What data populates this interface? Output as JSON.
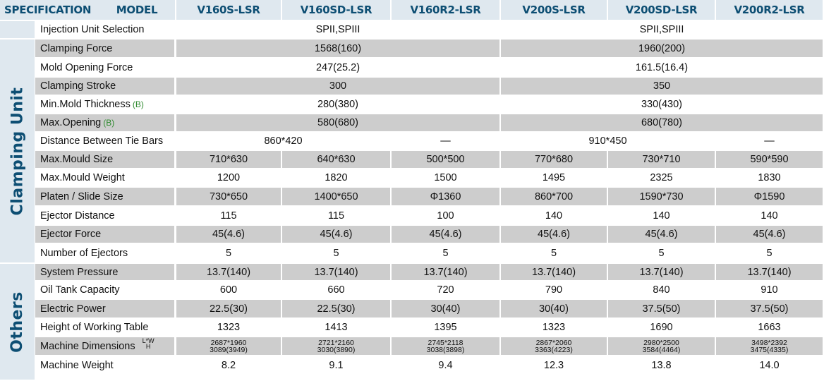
{
  "header": {
    "spec": "SPECIFICATION",
    "model": "MODEL",
    "models": [
      "V160S-LSR",
      "V160SD-LSR",
      "V160R2-LSR",
      "V200S-LSR",
      "V200SD-LSR",
      "V200R2-LSR"
    ]
  },
  "groups": {
    "clamping": "Clamping Unit",
    "others": "Others"
  },
  "badge": "(B)",
  "lwh": {
    "lw": "L*W",
    "h": "H"
  },
  "rows": [
    {
      "label": "Injection Unit Selection",
      "shaded": false,
      "span": "group",
      "values": [
        "SPII,SPIII",
        "SPII,SPIII"
      ]
    },
    {
      "label": "Clamping Force",
      "shaded": true,
      "span": "group",
      "values": [
        "1568(160)",
        "1960(200)"
      ]
    },
    {
      "label": "Mold Opening Force",
      "shaded": false,
      "span": "group",
      "values": [
        "247(25.2)",
        "161.5(16.4)"
      ]
    },
    {
      "label": "Clamping Stroke",
      "shaded": true,
      "span": "group",
      "values": [
        "300",
        "350"
      ]
    },
    {
      "label": "Min.Mold Thickness",
      "shaded": false,
      "span": "group",
      "badge": true,
      "values": [
        "280(380)",
        "330(430)"
      ]
    },
    {
      "label": "Max.Opening",
      "shaded": true,
      "span": "group",
      "badge": true,
      "values": [
        "580(680)",
        "680(780)"
      ]
    },
    {
      "label": "Distance Between Tie Bars",
      "shaded": false,
      "span": "pair",
      "values": [
        "860*420",
        "—",
        "910*450",
        "—"
      ]
    },
    {
      "label": "Max.Mould  Size",
      "shaded": true,
      "values": [
        "710*630",
        "640*630",
        "500*500",
        "770*680",
        "730*710",
        "590*590"
      ]
    },
    {
      "label": "Max.Mould  Weight",
      "shaded": false,
      "values": [
        "1200",
        "1820",
        "1500",
        "1495",
        "2325",
        "1830"
      ]
    },
    {
      "label": "Platen /  Slide Size",
      "shaded": true,
      "values": [
        "730*650",
        "1400*650",
        "Φ1360",
        "860*700",
        "1590*730",
        "Φ1590"
      ]
    },
    {
      "label": "Ejector Distance",
      "shaded": false,
      "values": [
        "115",
        "115",
        "100",
        "140",
        "140",
        "140"
      ]
    },
    {
      "label": "Ejector Force",
      "shaded": true,
      "values": [
        "45(4.6)",
        "45(4.6)",
        "45(4.6)",
        "45(4.6)",
        "45(4.6)",
        "45(4.6)"
      ]
    },
    {
      "label": "Number of Ejectors",
      "shaded": false,
      "values": [
        "5",
        "5",
        "5",
        "5",
        "5",
        "5"
      ]
    },
    {
      "label": "System Pressure",
      "shaded": true,
      "values": [
        "13.7(140)",
        "13.7(140)",
        "13.7(140)",
        "13.7(140)",
        "13.7(140)",
        "13.7(140)"
      ]
    },
    {
      "label": "Oil Tank Capacity",
      "shaded": false,
      "values": [
        "600",
        "660",
        "720",
        "790",
        "840",
        "910"
      ]
    },
    {
      "label": "Electric Power",
      "shaded": true,
      "values": [
        "22.5(30)",
        "22.5(30)",
        "30(40)",
        "30(40)",
        "37.5(50)",
        "37.5(50)"
      ]
    },
    {
      "label": "Height of Working Table",
      "shaded": false,
      "values": [
        "1323",
        "1413",
        "1395",
        "1323",
        "1690",
        "1663"
      ]
    },
    {
      "label": "Machine Dimensions",
      "shaded": true,
      "lwh": true,
      "values": [
        [
          "2687*1960",
          "3089(3949)"
        ],
        [
          "2721*2160",
          "3030(3890)"
        ],
        [
          "2745*2118",
          "3038(3898)"
        ],
        [
          "2867*2060",
          "3363(4223)"
        ],
        [
          "2980*2500",
          "3584(4464)"
        ],
        [
          "3498*2392",
          "3475(4335)"
        ]
      ]
    },
    {
      "label": "Machine Weight",
      "shaded": false,
      "values": [
        "8.2",
        "9.1",
        "9.4",
        "12.3",
        "13.8",
        "14.0"
      ]
    }
  ]
}
